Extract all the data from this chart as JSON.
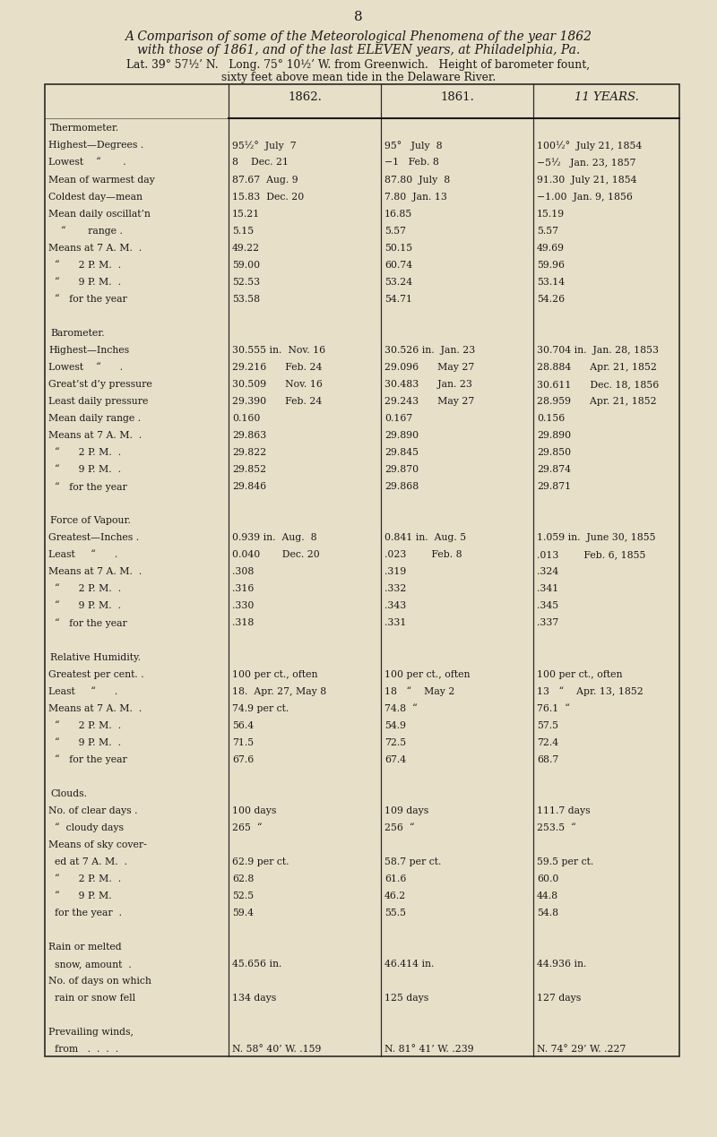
{
  "page_number": "8",
  "bg_color": "#e8dfc8",
  "text_color": "#1a1a1a",
  "title_line1": "A Comparison of some of the Meteorological Phenomena of the year 1862",
  "title_line2": "with those of 1861, and of the last ELEVEN years, at Philadelphia, Pa.",
  "subtitle1": "Lat. 39° 57½’ N.   Long. 75° 10½’ W. from Greenwich.   Height of barometer fount,",
  "subtitle2": "sixty feet above mean tide in the Delaware River.",
  "col1_header": "1862.",
  "col2_header": "1861.",
  "col3_header": "11 YEARS.",
  "rows": [
    {
      "label": "Thermometer.",
      "v1": "",
      "v2": "",
      "v3": "",
      "is_section": true
    },
    {
      "label": "Highest—Degrees .",
      "v1": "95½°  July  7",
      "v2": "95°   July  8",
      "v3": "100½°  July 21, 1854",
      "is_section": false
    },
    {
      "label": "Lowest    “       .",
      "v1": "8    Dec. 21",
      "v2": "−1   Feb. 8",
      "v3": "−5½   Jan. 23, 1857",
      "is_section": false
    },
    {
      "label": "Mean of warmest day",
      "v1": "87.67  Aug. 9",
      "v2": "87.80  July  8",
      "v3": "91.30  July 21, 1854",
      "is_section": false
    },
    {
      "label": "Coldest day—mean",
      "v1": "15.83  Dec. 20",
      "v2": "7.80  Jan. 13",
      "v3": "−1.00  Jan. 9, 1856",
      "is_section": false
    },
    {
      "label": "Mean daily oscillat’n",
      "v1": "15.21",
      "v2": "16.85",
      "v3": "15.19",
      "is_section": false
    },
    {
      "label": "    “       range .",
      "v1": "5.15",
      "v2": "5.57",
      "v3": "5.57",
      "is_section": false
    },
    {
      "label": "Means at 7 A. M.  .",
      "v1": "49.22",
      "v2": "50.15",
      "v3": "49.69",
      "is_section": false
    },
    {
      "label": "  “      2 P. M.  .",
      "v1": "59.00",
      "v2": "60.74",
      "v3": "59.96",
      "is_section": false
    },
    {
      "label": "  “      9 P. M.  .",
      "v1": "52.53",
      "v2": "53.24",
      "v3": "53.14",
      "is_section": false
    },
    {
      "label": "  “   for the year",
      "v1": "53.58",
      "v2": "54.71",
      "v3": "54.26",
      "is_section": false
    },
    {
      "label": "",
      "v1": "",
      "v2": "",
      "v3": "",
      "is_section": false
    },
    {
      "label": "Barometer.",
      "v1": "",
      "v2": "",
      "v3": "",
      "is_section": true
    },
    {
      "label": "Highest—Inches",
      "v1": "30.555 in.  Nov. 16",
      "v2": "30.526 in.  Jan. 23",
      "v3": "30.704 in.  Jan. 28, 1853",
      "is_section": false
    },
    {
      "label": "Lowest    “      .",
      "v1": "29.216      Feb. 24",
      "v2": "29.096      May 27",
      "v3": "28.884      Apr. 21, 1852",
      "is_section": false
    },
    {
      "label": "Great’st d’y pressure",
      "v1": "30.509      Nov. 16",
      "v2": "30.483      Jan. 23",
      "v3": "30.611      Dec. 18, 1856",
      "is_section": false
    },
    {
      "label": "Least daily pressure",
      "v1": "29.390      Feb. 24",
      "v2": "29.243      May 27",
      "v3": "28.959      Apr. 21, 1852",
      "is_section": false
    },
    {
      "label": "Mean daily range .",
      "v1": "0.160",
      "v2": "0.167",
      "v3": "0.156",
      "is_section": false
    },
    {
      "label": "Means at 7 A. M.  .",
      "v1": "29.863",
      "v2": "29.890",
      "v3": "29.890",
      "is_section": false
    },
    {
      "label": "  “      2 P. M.  .",
      "v1": "29.822",
      "v2": "29.845",
      "v3": "29.850",
      "is_section": false
    },
    {
      "label": "  “      9 P. M.  .",
      "v1": "29.852",
      "v2": "29.870",
      "v3": "29.874",
      "is_section": false
    },
    {
      "label": "  “   for the year",
      "v1": "29.846",
      "v2": "29.868",
      "v3": "29.871",
      "is_section": false
    },
    {
      "label": "",
      "v1": "",
      "v2": "",
      "v3": "",
      "is_section": false
    },
    {
      "label": "Force of Vapour.",
      "v1": "",
      "v2": "",
      "v3": "",
      "is_section": true
    },
    {
      "label": "Greatest—Inches .",
      "v1": "0.939 in.  Aug.  8",
      "v2": "0.841 in.  Aug. 5",
      "v3": "1.059 in.  June 30, 1855",
      "is_section": false
    },
    {
      "label": "Least     “      .",
      "v1": "0.040       Dec. 20",
      "v2": ".023        Feb. 8",
      "v3": ".013        Feb. 6, 1855",
      "is_section": false
    },
    {
      "label": "Means at 7 A. M.  .",
      "v1": ".308",
      "v2": ".319",
      "v3": ".324",
      "is_section": false
    },
    {
      "label": "  “      2 P. M.  .",
      "v1": ".316",
      "v2": ".332",
      "v3": ".341",
      "is_section": false
    },
    {
      "label": "  “      9 P. M.  .",
      "v1": ".330",
      "v2": ".343",
      "v3": ".345",
      "is_section": false
    },
    {
      "label": "  “   for the year",
      "v1": ".318",
      "v2": ".331",
      "v3": ".337",
      "is_section": false
    },
    {
      "label": "",
      "v1": "",
      "v2": "",
      "v3": "",
      "is_section": false
    },
    {
      "label": "Relative Humidity.",
      "v1": "",
      "v2": "",
      "v3": "",
      "is_section": true
    },
    {
      "label": "Greatest per cent. .",
      "v1": "100 per ct., often",
      "v2": "100 per ct., often",
      "v3": "100 per ct., often",
      "is_section": false
    },
    {
      "label": "Least     “      .",
      "v1": "18.  Apr. 27, May 8",
      "v2": "18   “    May 2",
      "v3": "13   “    Apr. 13, 1852",
      "is_section": false
    },
    {
      "label": "Means at 7 A. M.  .",
      "v1": "74.9 per ct.",
      "v2": "74.8  “",
      "v3": "76.1  “",
      "is_section": false
    },
    {
      "label": "  “      2 P. M.  .",
      "v1": "56.4",
      "v2": "54.9",
      "v3": "57.5",
      "is_section": false
    },
    {
      "label": "  “      9 P. M.  .",
      "v1": "71.5",
      "v2": "72.5",
      "v3": "72.4",
      "is_section": false
    },
    {
      "label": "  “   for the year",
      "v1": "67.6",
      "v2": "67.4",
      "v3": "68.7",
      "is_section": false
    },
    {
      "label": "",
      "v1": "",
      "v2": "",
      "v3": "",
      "is_section": false
    },
    {
      "label": "Clouds.",
      "v1": "",
      "v2": "",
      "v3": "",
      "is_section": true
    },
    {
      "label": "No. of clear days .",
      "v1": "100 days",
      "v2": "109 days",
      "v3": "111.7 days",
      "is_section": false
    },
    {
      "label": "  “  cloudy days",
      "v1": "265  “",
      "v2": "256  “",
      "v3": "253.5  “",
      "is_section": false
    },
    {
      "label": "Means of sky cover-",
      "v1": "",
      "v2": "",
      "v3": "",
      "is_section": false
    },
    {
      "label": "  ed at 7 A. M.  .",
      "v1": "62.9 per ct.",
      "v2": "58.7 per ct.",
      "v3": "59.5 per ct.",
      "is_section": false
    },
    {
      "label": "  “      2 P. M.  .",
      "v1": "62.8",
      "v2": "61.6",
      "v3": "60.0",
      "is_section": false
    },
    {
      "label": "  “      9 P. M.",
      "v1": "52.5",
      "v2": "46.2",
      "v3": "44.8",
      "is_section": false
    },
    {
      "label": "  for the year  .",
      "v1": "59.4",
      "v2": "55.5",
      "v3": "54.8",
      "is_section": false
    },
    {
      "label": "",
      "v1": "",
      "v2": "",
      "v3": "",
      "is_section": false
    },
    {
      "label": "Rain or melted",
      "v1": "",
      "v2": "",
      "v3": "",
      "is_section": false
    },
    {
      "label": "  snow, amount  .",
      "v1": "45.656 in.",
      "v2": "46.414 in.",
      "v3": "44.936 in.",
      "is_section": false
    },
    {
      "label": "No. of days on which",
      "v1": "",
      "v2": "",
      "v3": "",
      "is_section": false
    },
    {
      "label": "  rain or snow fell",
      "v1": "134 days",
      "v2": "125 days",
      "v3": "127 days",
      "is_section": false
    },
    {
      "label": "",
      "v1": "",
      "v2": "",
      "v3": "",
      "is_section": false
    },
    {
      "label": "Prevailing winds,",
      "v1": "",
      "v2": "",
      "v3": "",
      "is_section": false
    },
    {
      "label": "  from   .  .  .  .",
      "v1": "N. 58° 40’ W. .159",
      "v2": "N. 81° 41’ W. .239",
      "v3": "N. 74° 29’ W. .227",
      "is_section": false
    }
  ]
}
